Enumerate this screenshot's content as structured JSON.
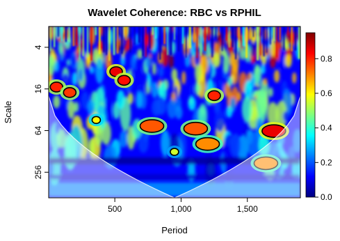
{
  "chart_data": {
    "type": "heatmap",
    "title": "Wavelet Coherence: RBC vs RPHIL",
    "xlabel": "Period",
    "ylabel": "Scale",
    "x_ticks": [
      {
        "value": 500,
        "label": "500"
      },
      {
        "value": 1000,
        "label": "1,000"
      },
      {
        "value": 1500,
        "label": "1,500"
      }
    ],
    "xlim": [
      1,
      1900
    ],
    "y_scale": "log2",
    "y_ticks": [
      {
        "value": 4,
        "label": "4"
      },
      {
        "value": 16,
        "label": "16"
      },
      {
        "value": 64,
        "label": "64"
      },
      {
        "value": 256,
        "label": "256"
      }
    ],
    "ylim": [
      2,
      600
    ],
    "colorbar": {
      "ticks": [
        {
          "value": 0.0,
          "label": "0.0"
        },
        {
          "value": 0.2,
          "label": "0.2"
        },
        {
          "value": 0.4,
          "label": "0.4"
        },
        {
          "value": 0.6,
          "label": "0.6"
        },
        {
          "value": 0.8,
          "label": "0.8"
        }
      ],
      "range": [
        0,
        0.95
      ],
      "colors": [
        "#00007f",
        "#0000ff",
        "#007fff",
        "#00ffff",
        "#7fff7f",
        "#ffff00",
        "#ff7f00",
        "#ff0000",
        "#7f0000"
      ]
    },
    "regions": [
      {
        "x": 510,
        "scale": 9,
        "coherence": 0.85
      },
      {
        "x": 570,
        "scale": 12,
        "coherence": 0.82
      },
      {
        "x": 780,
        "scale": 55,
        "coherence": 0.75
      },
      {
        "x": 1110,
        "scale": 60,
        "coherence": 0.75
      },
      {
        "x": 1200,
        "scale": 100,
        "coherence": 0.7
      },
      {
        "x": 1700,
        "scale": 65,
        "coherence": 0.85
      },
      {
        "x": 1640,
        "scale": 190,
        "coherence": 0.7
      },
      {
        "x": 60,
        "scale": 15,
        "coherence": 0.8
      },
      {
        "x": 160,
        "scale": 18,
        "coherence": 0.78
      },
      {
        "x": 360,
        "scale": 45,
        "coherence": 0.6
      },
      {
        "x": 950,
        "scale": 130,
        "coherence": 0.55
      },
      {
        "x": 1250,
        "scale": 20,
        "coherence": 0.8
      }
    ]
  }
}
